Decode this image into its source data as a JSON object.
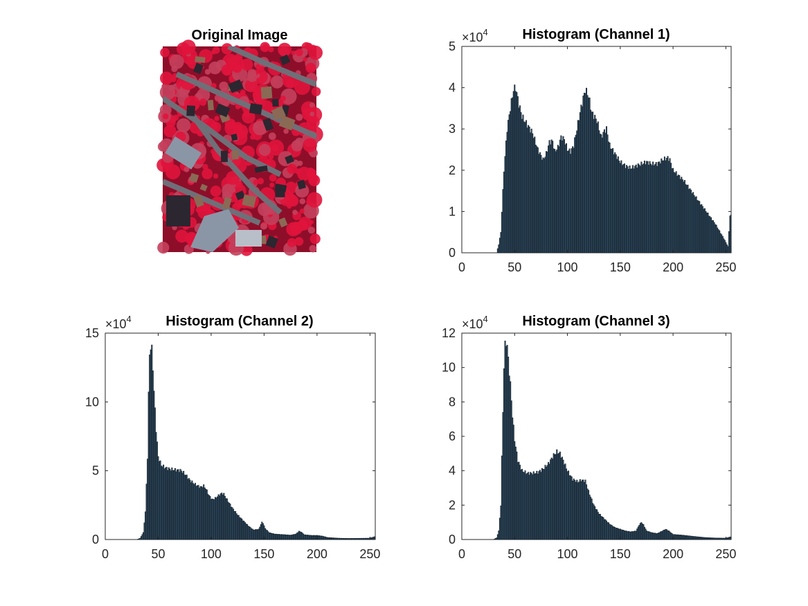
{
  "image_panel": {
    "title": "Original Image",
    "colors": {
      "foliage": "#e0143c",
      "foliage_dark": "#8e0e2a",
      "road": "#6f6f78",
      "roof_grey": "#8a96a6",
      "roof_brown": "#8a6a55",
      "shadow": "#2b2630",
      "lawn": "#c4405c"
    }
  },
  "chart_data": [
    {
      "type": "bar",
      "title": "Histogram (Channel 1)",
      "xlim": [
        0,
        255
      ],
      "ylim": [
        0,
        50000
      ],
      "xticks": [
        0,
        50,
        100,
        150,
        200,
        250
      ],
      "yticks": [
        0,
        1,
        2,
        3,
        4,
        5
      ],
      "y_exponent_label": "×10",
      "y_exponent": "4",
      "bar_color": "#2e4a5f",
      "edge_color": "#101820",
      "anchors": [
        [
          0,
          0
        ],
        [
          33,
          0
        ],
        [
          35,
          2000
        ],
        [
          37,
          5000
        ],
        [
          40,
          20000
        ],
        [
          43,
          30000
        ],
        [
          46,
          35000
        ],
        [
          49,
          39500
        ],
        [
          51,
          40000
        ],
        [
          54,
          36000
        ],
        [
          57,
          33000
        ],
        [
          62,
          31000
        ],
        [
          67,
          29000
        ],
        [
          72,
          25000
        ],
        [
          77,
          22500
        ],
        [
          80,
          24000
        ],
        [
          83,
          26800
        ],
        [
          86,
          27000
        ],
        [
          88,
          24500
        ],
        [
          91,
          25500
        ],
        [
          94,
          28000
        ],
        [
          97,
          27500
        ],
        [
          100,
          25000
        ],
        [
          103,
          24500
        ],
        [
          106,
          26000
        ],
        [
          109,
          30000
        ],
        [
          112,
          34000
        ],
        [
          115,
          37500
        ],
        [
          117,
          39500
        ],
        [
          120,
          38000
        ],
        [
          123,
          34000
        ],
        [
          128,
          32000
        ],
        [
          132,
          28000
        ],
        [
          135,
          29500
        ],
        [
          137,
          30000
        ],
        [
          140,
          26000
        ],
        [
          145,
          24000
        ],
        [
          150,
          22000
        ],
        [
          155,
          21000
        ],
        [
          160,
          20500
        ],
        [
          165,
          21000
        ],
        [
          170,
          21500
        ],
        [
          175,
          22000
        ],
        [
          180,
          21500
        ],
        [
          185,
          21500
        ],
        [
          190,
          22500
        ],
        [
          195,
          23000
        ],
        [
          197,
          22500
        ],
        [
          200,
          20000
        ],
        [
          210,
          17500
        ],
        [
          220,
          14000
        ],
        [
          230,
          10500
        ],
        [
          240,
          7000
        ],
        [
          248,
          3500
        ],
        [
          252,
          1500
        ],
        [
          254,
          9000
        ]
      ]
    },
    {
      "type": "bar",
      "title": "Histogram (Channel 2)",
      "xlim": [
        0,
        255
      ],
      "ylim": [
        0,
        150000
      ],
      "xticks": [
        0,
        50,
        100,
        150,
        200,
        250
      ],
      "yticks": [
        0,
        5,
        10,
        15
      ],
      "y_exponent_label": "×10",
      "y_exponent": "4",
      "bar_color": "#2e4a5f",
      "edge_color": "#101820",
      "anchors": [
        [
          0,
          0
        ],
        [
          30,
          0
        ],
        [
          33,
          1000
        ],
        [
          36,
          5000
        ],
        [
          38,
          20000
        ],
        [
          40,
          60000
        ],
        [
          41,
          105000
        ],
        [
          42,
          135000
        ],
        [
          43,
          140000
        ],
        [
          44,
          138000
        ],
        [
          45,
          125000
        ],
        [
          46,
          108000
        ],
        [
          48,
          80000
        ],
        [
          50,
          60000
        ],
        [
          53,
          54000
        ],
        [
          57,
          52000
        ],
        [
          62,
          51000
        ],
        [
          67,
          50500
        ],
        [
          72,
          50000
        ],
        [
          76,
          47000
        ],
        [
          80,
          43000
        ],
        [
          85,
          40000
        ],
        [
          90,
          38000
        ],
        [
          93,
          39000
        ],
        [
          95,
          37000
        ],
        [
          98,
          32000
        ],
        [
          101,
          29000
        ],
        [
          104,
          30000
        ],
        [
          107,
          32000
        ],
        [
          110,
          33500
        ],
        [
          112,
          33000
        ],
        [
          115,
          29000
        ],
        [
          120,
          23000
        ],
        [
          125,
          18000
        ],
        [
          130,
          14000
        ],
        [
          135,
          10000
        ],
        [
          140,
          7000
        ],
        [
          145,
          7500
        ],
        [
          147,
          11000
        ],
        [
          148,
          12500
        ],
        [
          149,
          12000
        ],
        [
          151,
          8000
        ],
        [
          155,
          5000
        ],
        [
          160,
          4000
        ],
        [
          170,
          3500
        ],
        [
          175,
          3200
        ],
        [
          180,
          4000
        ],
        [
          183,
          6000
        ],
        [
          185,
          5500
        ],
        [
          188,
          3500
        ],
        [
          195,
          3000
        ],
        [
          200,
          3000
        ],
        [
          205,
          2500
        ],
        [
          210,
          1500
        ],
        [
          220,
          1000
        ],
        [
          230,
          800
        ],
        [
          250,
          1000
        ],
        [
          254,
          2000
        ]
      ]
    },
    {
      "type": "bar",
      "title": "Histogram (Channel 3)",
      "xlim": [
        0,
        255
      ],
      "ylim": [
        0,
        120000
      ],
      "xticks": [
        0,
        50,
        100,
        150,
        200,
        250
      ],
      "yticks": [
        0,
        2,
        4,
        6,
        8,
        10,
        12
      ],
      "y_exponent_label": "×10",
      "y_exponent": "4",
      "bar_color": "#2e4a5f",
      "edge_color": "#101820",
      "anchors": [
        [
          0,
          0
        ],
        [
          30,
          0
        ],
        [
          33,
          1000
        ],
        [
          35,
          5000
        ],
        [
          37,
          20000
        ],
        [
          39,
          75000
        ],
        [
          40,
          100000
        ],
        [
          41,
          113000
        ],
        [
          42,
          115000
        ],
        [
          43,
          112000
        ],
        [
          44,
          105000
        ],
        [
          46,
          90000
        ],
        [
          48,
          72000
        ],
        [
          50,
          58000
        ],
        [
          53,
          46000
        ],
        [
          57,
          40000
        ],
        [
          62,
          38500
        ],
        [
          67,
          38500
        ],
        [
          72,
          39000
        ],
        [
          77,
          41000
        ],
        [
          82,
          44000
        ],
        [
          87,
          49000
        ],
        [
          90,
          51000
        ],
        [
          93,
          50000
        ],
        [
          96,
          46000
        ],
        [
          100,
          40000
        ],
        [
          105,
          35000
        ],
        [
          110,
          33500
        ],
        [
          113,
          34500
        ],
        [
          117,
          34000
        ],
        [
          120,
          28000
        ],
        [
          125,
          20000
        ],
        [
          130,
          15000
        ],
        [
          135,
          12000
        ],
        [
          140,
          9000
        ],
        [
          145,
          7000
        ],
        [
          150,
          6000
        ],
        [
          155,
          5000
        ],
        [
          160,
          4500
        ],
        [
          165,
          5000
        ],
        [
          168,
          8500
        ],
        [
          170,
          10000
        ],
        [
          172,
          8500
        ],
        [
          175,
          5000
        ],
        [
          180,
          4000
        ],
        [
          185,
          3500
        ],
        [
          190,
          5000
        ],
        [
          193,
          6000
        ],
        [
          196,
          5000
        ],
        [
          200,
          3000
        ],
        [
          210,
          2500
        ],
        [
          220,
          1800
        ],
        [
          230,
          1200
        ],
        [
          240,
          900
        ],
        [
          250,
          800
        ],
        [
          254,
          1500
        ]
      ]
    }
  ]
}
